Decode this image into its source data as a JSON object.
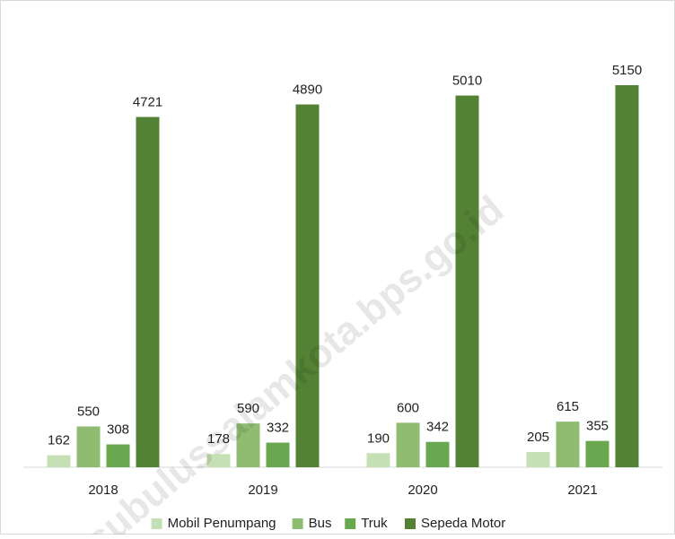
{
  "chart_data": {
    "type": "bar",
    "categories": [
      "2018",
      "2019",
      "2020",
      "2021"
    ],
    "series": [
      {
        "name": "Mobil Penumpang",
        "color": "#c5e0b4",
        "values": [
          162,
          178,
          190,
          205
        ]
      },
      {
        "name": "Bus",
        "color": "#8fbc70",
        "values": [
          550,
          590,
          600,
          615
        ]
      },
      {
        "name": "Truk",
        "color": "#6aa84f",
        "values": [
          308,
          332,
          342,
          355
        ]
      },
      {
        "name": "Sepeda Motor",
        "color": "#548235",
        "values": [
          4721,
          4890,
          5010,
          5150
        ]
      }
    ],
    "ylim": [
      0,
      5500
    ],
    "legend": "bottom",
    "watermark": "subulussalamkota.bps.go.id"
  }
}
